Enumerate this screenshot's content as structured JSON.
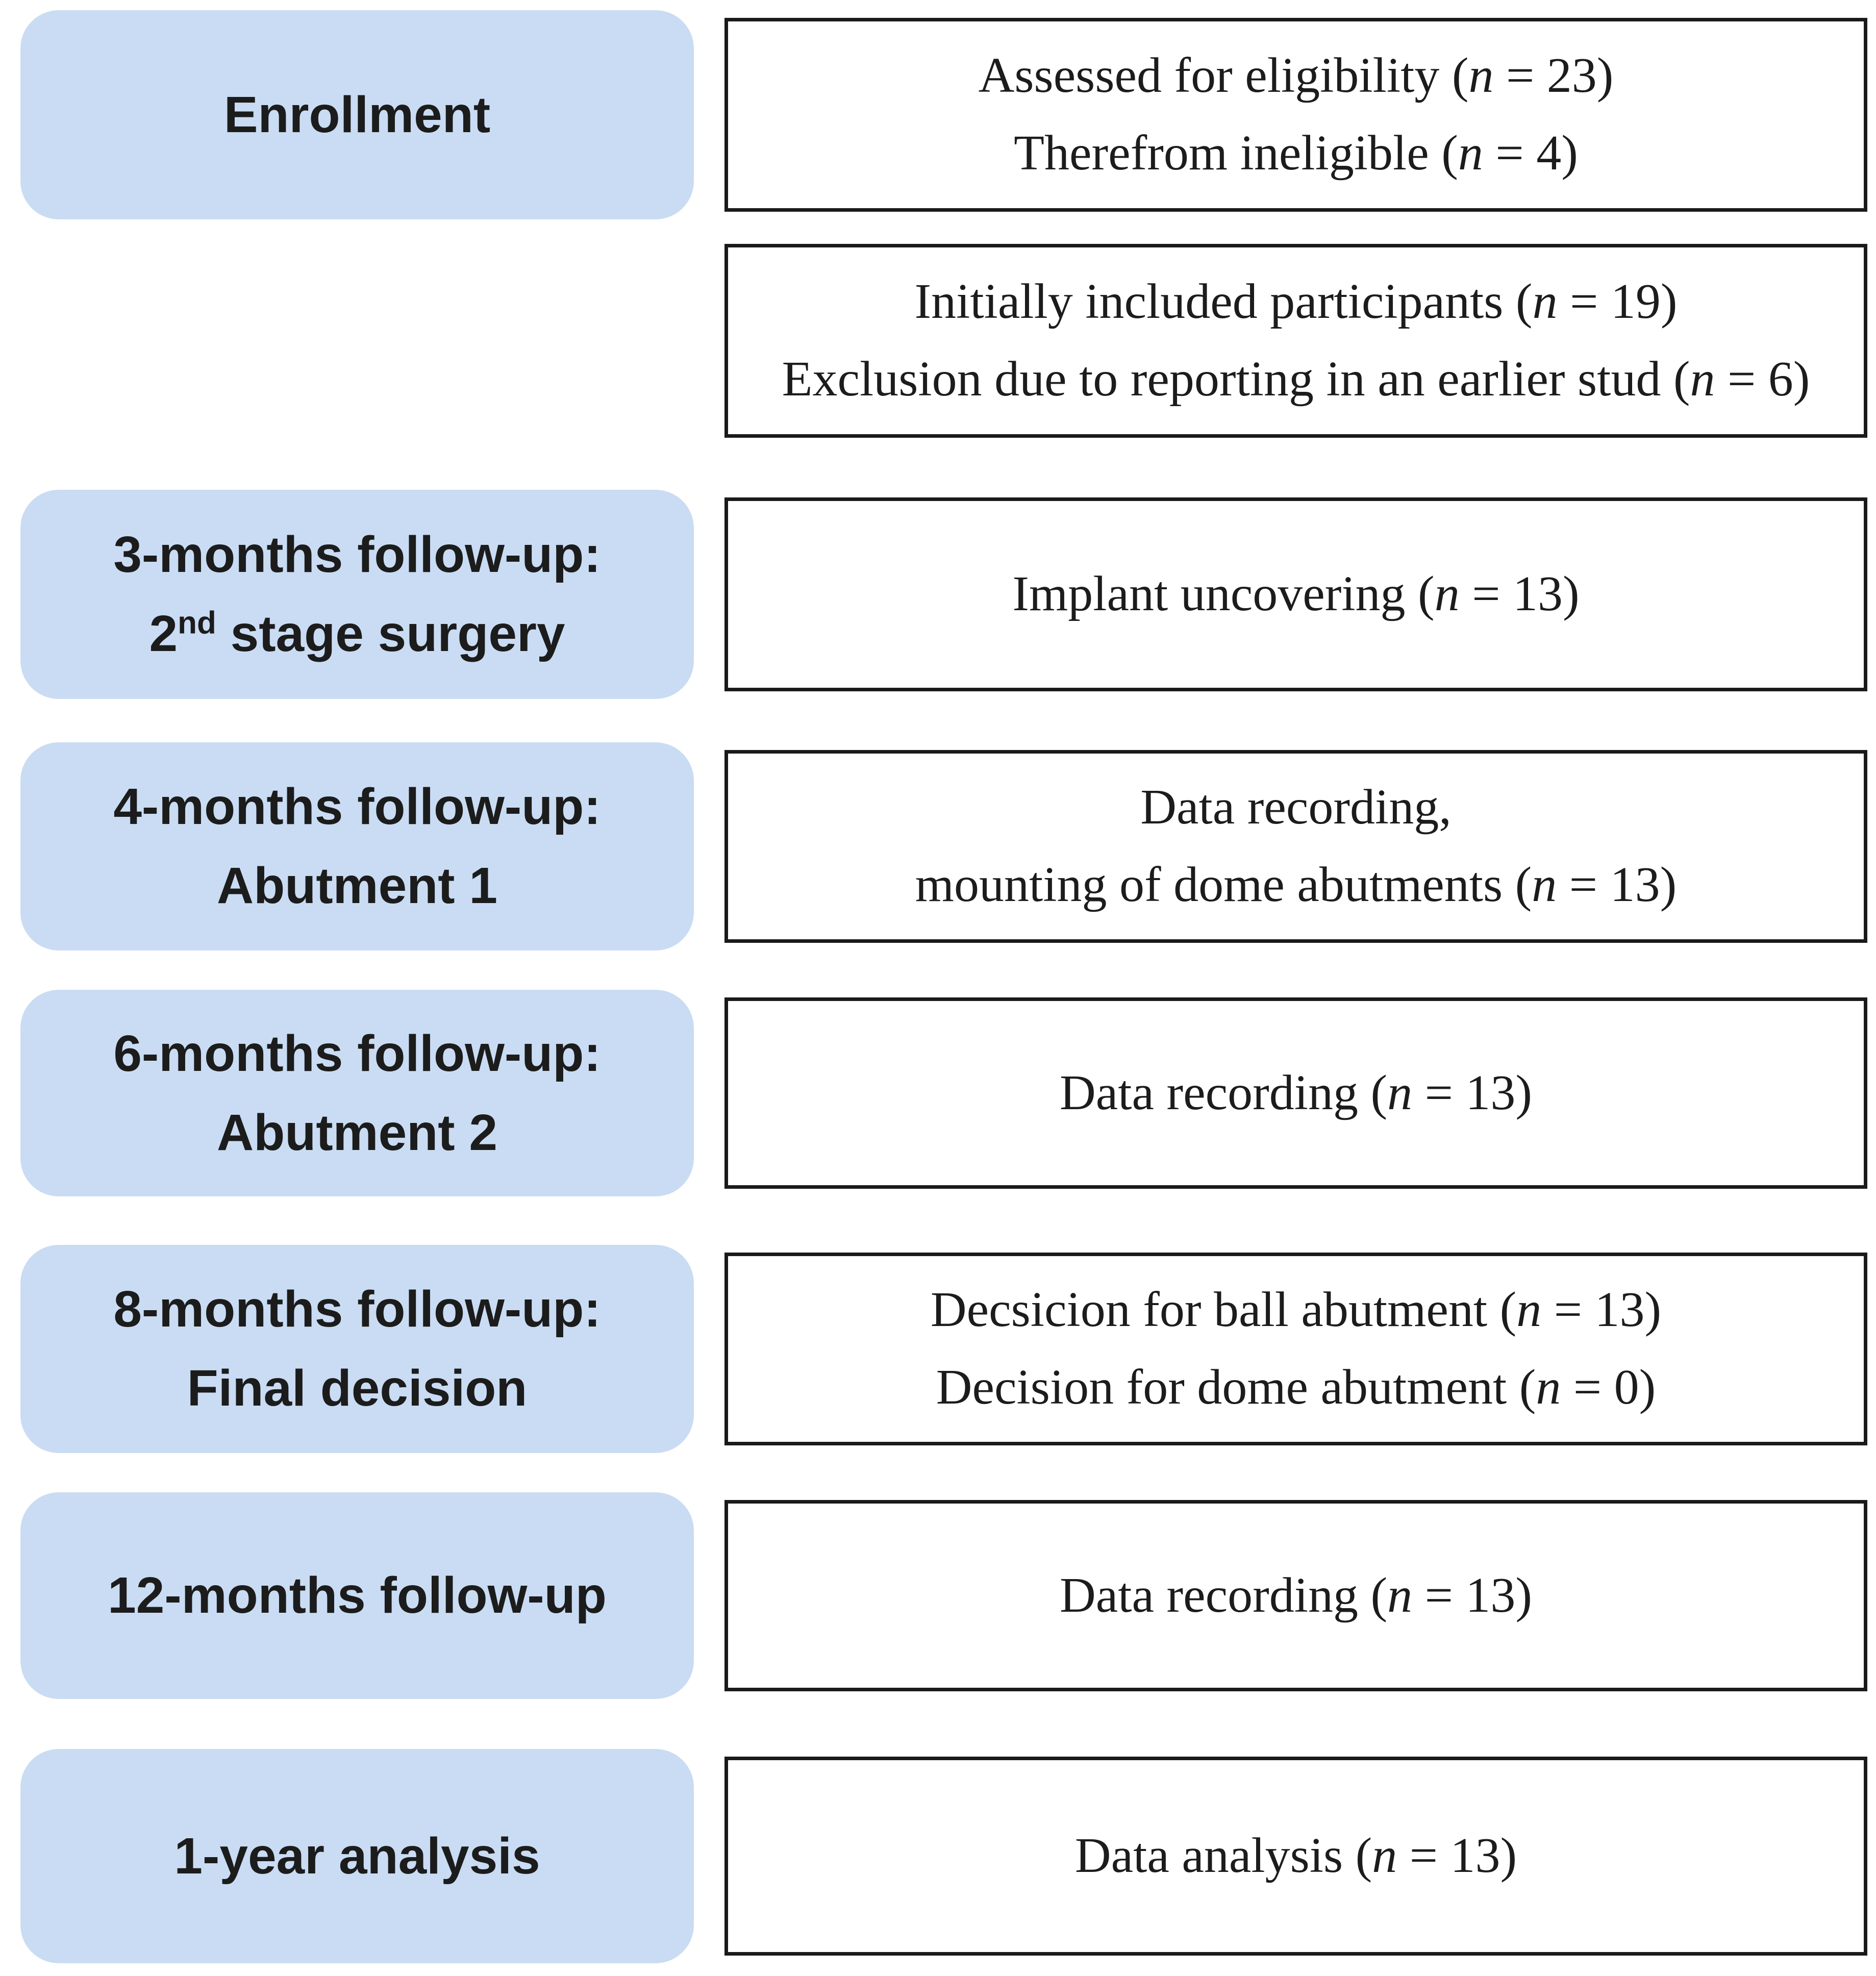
{
  "figure": {
    "colors": {
      "stage_fill": "#c9dcf3",
      "box_border": "#1a1a1a",
      "text": "#1c1c1c",
      "background": "#ffffff"
    },
    "rows": [
      {
        "stage_lines": [
          "Enrollment"
        ],
        "detail_lines": [
          "Assessed for eligibility (n = 23)",
          "Therefrom ineligible (n = 4)"
        ]
      },
      {
        "stage_lines": [],
        "detail_lines": [
          "Initially included participants (n = 19)",
          "Exclusion due to reporting in an earlier stud (n = 6)"
        ]
      },
      {
        "stage_lines": [
          "3-months follow-up:",
          "2nd stage surgery"
        ],
        "detail_lines": [
          "Implant uncovering (n = 13)"
        ]
      },
      {
        "stage_lines": [
          "4-months follow-up:",
          "Abutment 1"
        ],
        "detail_lines": [
          "Data recording,",
          "mounting of dome abutments (n = 13)"
        ]
      },
      {
        "stage_lines": [
          "6-months follow-up:",
          "Abutment 2"
        ],
        "detail_lines": [
          "Data recording (n = 13)"
        ]
      },
      {
        "stage_lines": [
          "8-months follow-up:",
          "Final decision"
        ],
        "detail_lines": [
          "Decsicion for ball abutment (n = 13)",
          "Decision for dome abutment (n = 0)"
        ]
      },
      {
        "stage_lines": [
          "12-months follow-up"
        ],
        "detail_lines": [
          "Data recording (n = 13)"
        ]
      },
      {
        "stage_lines": [
          "1-year analysis"
        ],
        "detail_lines": [
          "Data analysis (n = 13)"
        ]
      }
    ]
  }
}
